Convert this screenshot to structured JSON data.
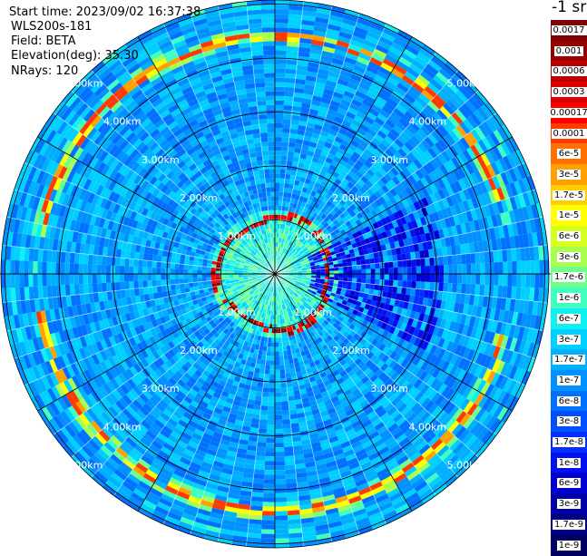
{
  "info": {
    "start_time": "Start time: 2023/09/02 16:37:38",
    "instrument": "WLS200s-181",
    "field": "Field: BETA",
    "elevation": "Elevation(deg): 35.30",
    "nrays": "NRays: 120"
  },
  "colorbar": {
    "unit": "-1 sr",
    "levels": [
      {
        "label": "0.0017",
        "color": "#7a0000"
      },
      {
        "label": "0.001",
        "color": "#9a0000"
      },
      {
        "label": "0.0006",
        "color": "#bb0000"
      },
      {
        "label": "0.0003",
        "color": "#dd0000"
      },
      {
        "label": "0.00017",
        "color": "#ff0000"
      },
      {
        "label": "0.0001",
        "color": "#ff3a00"
      },
      {
        "label": "6e-5",
        "color": "#ff7000"
      },
      {
        "label": "3e-5",
        "color": "#ffa000"
      },
      {
        "label": "1.7e-5",
        "color": "#ffcf00"
      },
      {
        "label": "1e-5",
        "color": "#ffff00"
      },
      {
        "label": "6e-6",
        "color": "#d6ff20"
      },
      {
        "label": "3e-6",
        "color": "#a8ff50"
      },
      {
        "label": "1.7e-6",
        "color": "#70ff88"
      },
      {
        "label": "1e-6",
        "color": "#40ffc0"
      },
      {
        "label": "6e-7",
        "color": "#10f0ee"
      },
      {
        "label": "3e-7",
        "color": "#00d0ff"
      },
      {
        "label": "1.7e-7",
        "color": "#00b0ff"
      },
      {
        "label": "1e-7",
        "color": "#0090ff"
      },
      {
        "label": "6e-8",
        "color": "#0070ff"
      },
      {
        "label": "3e-8",
        "color": "#0050ff"
      },
      {
        "label": "1.7e-8",
        "color": "#0030ff"
      },
      {
        "label": "1e-8",
        "color": "#0010f0"
      },
      {
        "label": "6e-9",
        "color": "#0000d0"
      },
      {
        "label": "3e-9",
        "color": "#0000a8"
      },
      {
        "label": "1.7e-9",
        "color": "#000085"
      },
      {
        "label": "1e-9",
        "color": "#000060"
      }
    ]
  },
  "range_rings": [
    "1.00km",
    "2.00km",
    "3.00km",
    "4.00km",
    "5.00km"
  ]
}
